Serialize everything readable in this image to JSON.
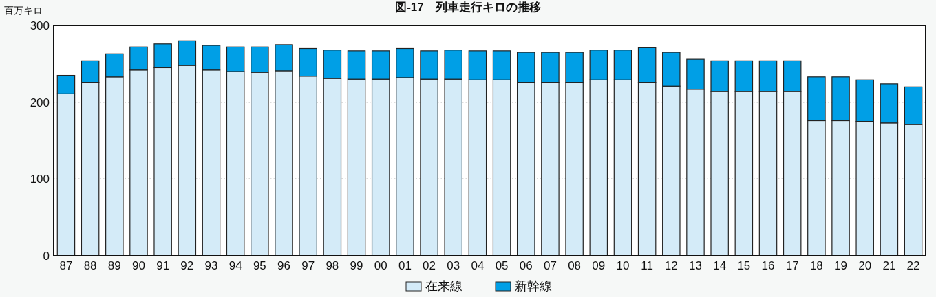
{
  "chart_data": {
    "type": "bar",
    "title": "図-17　列車走行キロの推移",
    "ylabel": "百万キロ",
    "stacked": true,
    "categories": [
      "87",
      "88",
      "89",
      "90",
      "91",
      "92",
      "93",
      "94",
      "95",
      "96",
      "97",
      "98",
      "99",
      "00",
      "01",
      "02",
      "03",
      "04",
      "05",
      "06",
      "07",
      "08",
      "09",
      "10",
      "11",
      "12",
      "13",
      "14",
      "15",
      "16",
      "17",
      "18",
      "19",
      "20",
      "21",
      "22"
    ],
    "series": [
      {
        "name": "在来線",
        "color": "#d4ebf8",
        "values": [
          211,
          226,
          233,
          242,
          245,
          248,
          242,
          240,
          239,
          241,
          234,
          231,
          230,
          230,
          232,
          230,
          230,
          229,
          229,
          226,
          226,
          226,
          229,
          229,
          226,
          221,
          217,
          214,
          214,
          214,
          214,
          176,
          176,
          175,
          173,
          171
        ]
      },
      {
        "name": "新幹線",
        "color": "#009fe6",
        "values": [
          24,
          28,
          30,
          30,
          31,
          32,
          32,
          32,
          33,
          34,
          36,
          37,
          37,
          37,
          38,
          37,
          38,
          38,
          38,
          39,
          39,
          39,
          39,
          39,
          45,
          44,
          39,
          40,
          40,
          40,
          40,
          57,
          57,
          54,
          51,
          49
        ]
      }
    ],
    "ylim": [
      0,
      300
    ],
    "yticks": [
      0,
      100,
      200,
      300
    ],
    "grid": "y",
    "legend": "bottom"
  }
}
